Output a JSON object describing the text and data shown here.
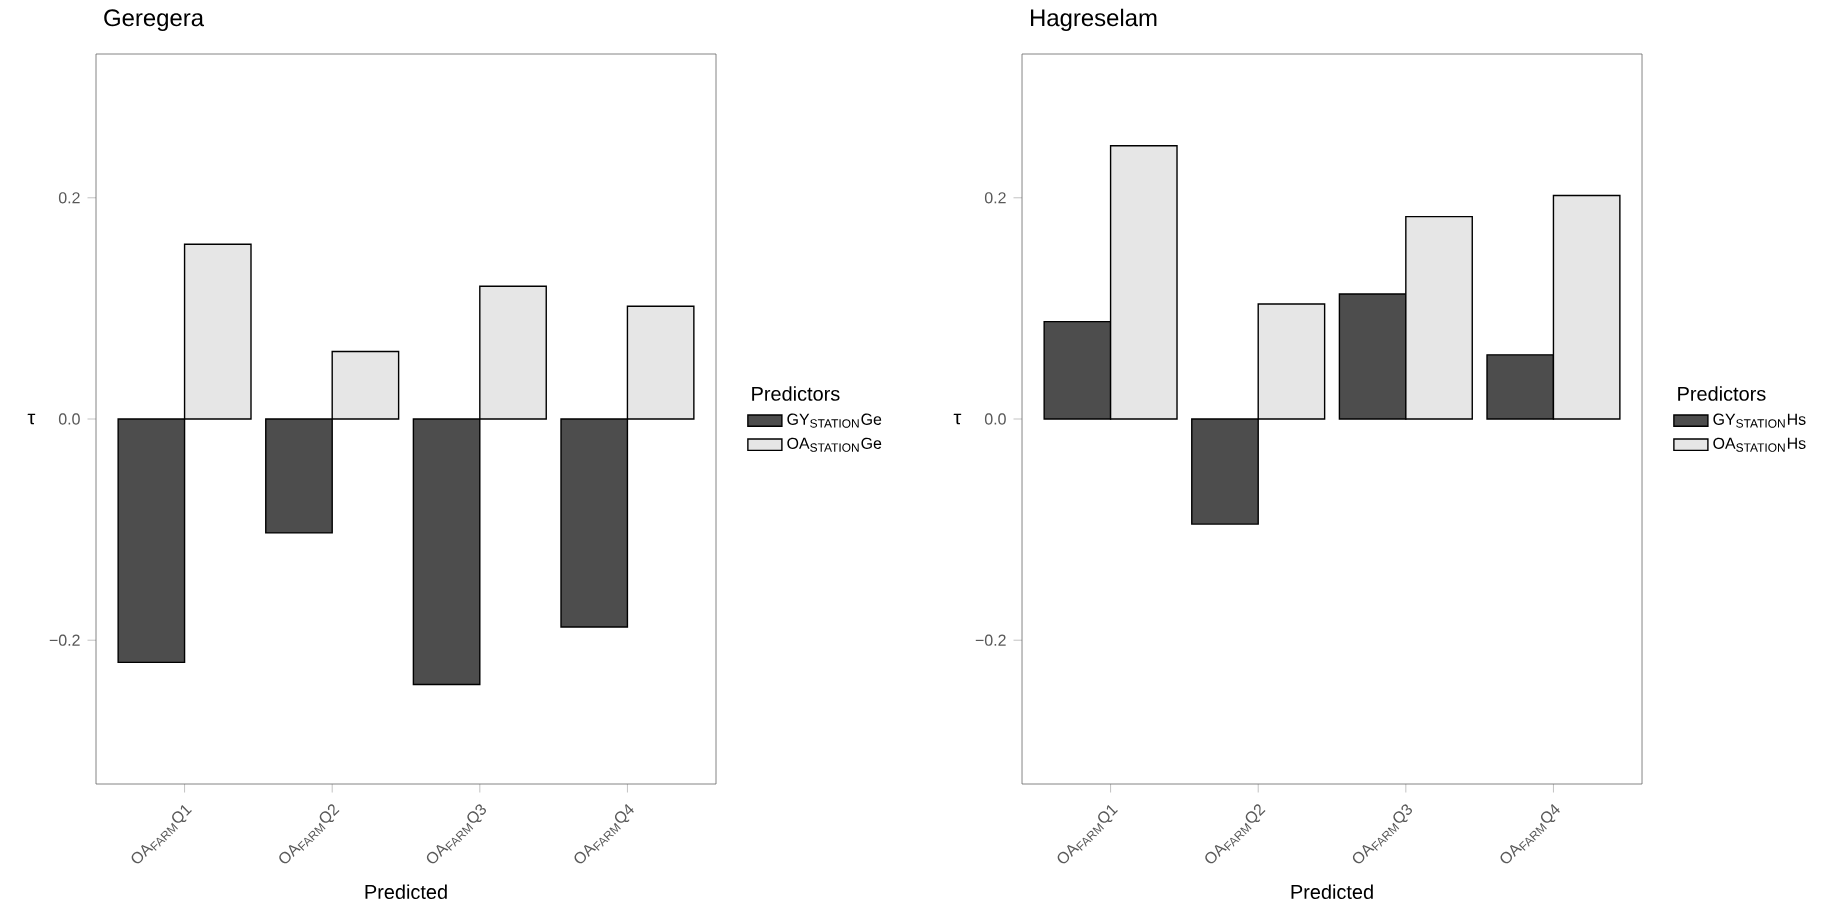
{
  "chart_data": [
    {
      "type": "bar",
      "title": "Geregera",
      "xlabel": "Predicted",
      "ylabel": "τ",
      "categories": [
        "OA$_{FARM}$Q1",
        "OA$_{FARM}$Q2",
        "OA$_{FARM}$Q3",
        "OA$_{FARM}$Q4"
      ],
      "series": [
        {
          "name": "GY$_{STATION}$Ge",
          "color": "#4d4d4d",
          "values": [
            -0.22,
            -0.103,
            -0.24,
            -0.188
          ]
        },
        {
          "name": "OA$_{STATION}$Ge",
          "color": "#e6e6e6",
          "values": [
            0.158,
            0.061,
            0.12,
            0.102
          ]
        }
      ],
      "ylim": [
        -0.33,
        0.33
      ],
      "yticks": [
        {
          "value": -0.2,
          "label": "−0.2"
        },
        {
          "value": 0,
          "label": "0.0"
        },
        {
          "value": 0.2,
          "label": "0.2"
        }
      ],
      "legend": "right",
      "legend_title": "Predictors"
    },
    {
      "type": "bar",
      "title": "Hagreselam",
      "xlabel": "Predicted",
      "ylabel": "τ",
      "categories": [
        "OA$_{FARM}$Q1",
        "OA$_{FARM}$Q2",
        "OA$_{FARM}$Q3",
        "OA$_{FARM}$Q4"
      ],
      "series": [
        {
          "name": "GY$_{STATION}$Hs",
          "color": "#4d4d4d",
          "values": [
            0.088,
            -0.095,
            0.113,
            0.058
          ]
        },
        {
          "name": "OA$_{STATION}$Hs",
          "color": "#e6e6e6",
          "values": [
            0.247,
            0.104,
            0.183,
            0.202
          ]
        }
      ],
      "ylim": [
        -0.33,
        0.33
      ],
      "yticks": [
        {
          "value": -0.2,
          "label": "−0.2"
        },
        {
          "value": 0,
          "label": "0.0"
        },
        {
          "value": 0.2,
          "label": "0.2"
        }
      ],
      "legend": "right",
      "legend_title": "Predictors"
    }
  ]
}
